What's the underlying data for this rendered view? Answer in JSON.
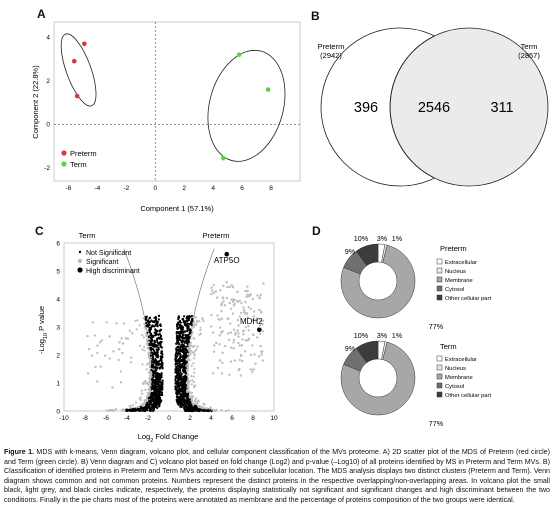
{
  "panels": {
    "a": "A",
    "b": "B",
    "c": "C",
    "d": "D"
  },
  "chart_data": [
    {
      "type": "scatter",
      "panel": "A",
      "title": "",
      "xlabel": "Component 1 (57.1%)",
      "ylabel": "Component 2 (22.8%)",
      "xlim": [
        -7,
        10
      ],
      "ylim": [
        -2.6,
        4.7
      ],
      "xticks": [
        "-6",
        "-4",
        "-2",
        "0",
        "2",
        "4",
        "6",
        "8"
      ],
      "xtick_values": [
        -6,
        -4,
        -2,
        0,
        2,
        4,
        6,
        8
      ],
      "yticks": [
        "-2",
        "0",
        "2",
        "4"
      ],
      "ytick_values": [
        -2,
        0,
        2,
        4
      ],
      "legend_position": "bottom-left",
      "series": [
        {
          "name": "Preterm",
          "color": "#d9383a",
          "points": [
            [
              -5.4,
              1.3
            ],
            [
              -5.6,
              2.9
            ],
            [
              -4.9,
              3.7
            ]
          ]
        },
        {
          "name": "Term",
          "color": "#5fcf4a",
          "points": [
            [
              5.8,
              3.2
            ],
            [
              7.8,
              1.6
            ],
            [
              4.7,
              -1.55
            ]
          ]
        }
      ],
      "clusters": [
        {
          "series": "Preterm",
          "center": [
            -5.3,
            2.5
          ],
          "rx": 0.85,
          "ry": 1.75,
          "angle": -20
        },
        {
          "series": "Term",
          "center": [
            6.3,
            0.85
          ],
          "rx": 2.55,
          "ry": 2.6,
          "angle": 15
        }
      ]
    },
    {
      "type": "venn",
      "panel": "B",
      "sets": [
        {
          "name": "Preterm",
          "count": "(2942)",
          "only": "396"
        },
        {
          "name": "Term",
          "count": "(2857)",
          "only": "311"
        }
      ],
      "overlap": "2546"
    },
    {
      "type": "scatter",
      "panel": "C",
      "title": "",
      "xlabel_main": "Log",
      "xlabel_sub": "2",
      "xlabel_rest": " Fold Change",
      "ylabel_prefix": "-Log",
      "ylabel_sub": "10",
      "ylabel_rest": " P value",
      "xlim": [
        -10,
        10
      ],
      "ylim": [
        0,
        6
      ],
      "xticks": [
        "-10",
        "-8",
        "-6",
        "-4",
        "-2",
        "0",
        "2",
        "4",
        "6",
        "8",
        "10"
      ],
      "xtick_values": [
        -10,
        -8,
        -6,
        -4,
        -2,
        0,
        2,
        4,
        6,
        8,
        10
      ],
      "yticks": [
        "0",
        "1",
        "2",
        "3",
        "4",
        "5",
        "6"
      ],
      "ytick_values": [
        0,
        1,
        2,
        3,
        4,
        5,
        6
      ],
      "group_labels": [
        "Term",
        "Preterm"
      ],
      "legend_position": "top-left",
      "series": [
        {
          "name": "Not Significant",
          "color": "#000000"
        },
        {
          "name": "Significant",
          "color": "#bdbdbd"
        },
        {
          "name": "High discriminant",
          "color": "#000000"
        }
      ],
      "labeled_points": [
        {
          "label": "ATP5O",
          "x": 5.5,
          "y": 5.6
        },
        {
          "label": "MDH2",
          "x": 8.6,
          "y": 2.9
        }
      ]
    },
    {
      "type": "pie",
      "panel": "D",
      "title": "Preterm",
      "categories": [
        "Extracellular",
        "Nucleus",
        "Membrane",
        "Cytosol",
        "Other cellular part"
      ],
      "values": [
        3,
        1,
        77,
        9,
        10
      ],
      "labels": [
        "3%",
        "1%",
        "77%",
        "9%",
        "10%"
      ],
      "colors": [
        "#ffffff",
        "#e9e9e9",
        "#a7a7a7",
        "#707070",
        "#3c3c3c"
      ]
    },
    {
      "type": "pie",
      "panel": "D",
      "title": "Term",
      "categories": [
        "Extracellular",
        "Nucleus",
        "Membrane",
        "Cytosol",
        "Other cellular part"
      ],
      "values": [
        3,
        1,
        77,
        9,
        10
      ],
      "labels": [
        "3%",
        "1%",
        "77%",
        "9%",
        "10%"
      ],
      "colors": [
        "#ffffff",
        "#e9e9e9",
        "#a7a7a7",
        "#707070",
        "#3c3c3c"
      ]
    }
  ],
  "caption": {
    "fig": "Figure 1.",
    "text": "MDS with k-means, Venn diagram, volcano plot, and cellular component classification of the MVs proteome. A) 2D scatter plot of the MDS of Preterm (red circle) and Term (green circle). B) Venn diagram and C) volcano plot based on fold change (Log2) and p-value (–Log10) of all proteins identified by MS in Preterm and Term MVs. B) Classification of identified proteins in Preterm and Term MVs according to their subcellular location. The MDS analysis displays two distinct clusters (Preterm and Term). Venn diagram shows common and not common proteins. Numbers represent the distinct proteins in the respective overlapping/non-overlapping areas. In volcano plot the small black, light grey, and black circles indicate, respectively, the proteins displaying statistically not significant and significant changes and high discriminant between the two conditions. Finally in the pie charts most of the proteins were annotated as membrane and the percentage of proteins composition of the two groups were identical."
  }
}
